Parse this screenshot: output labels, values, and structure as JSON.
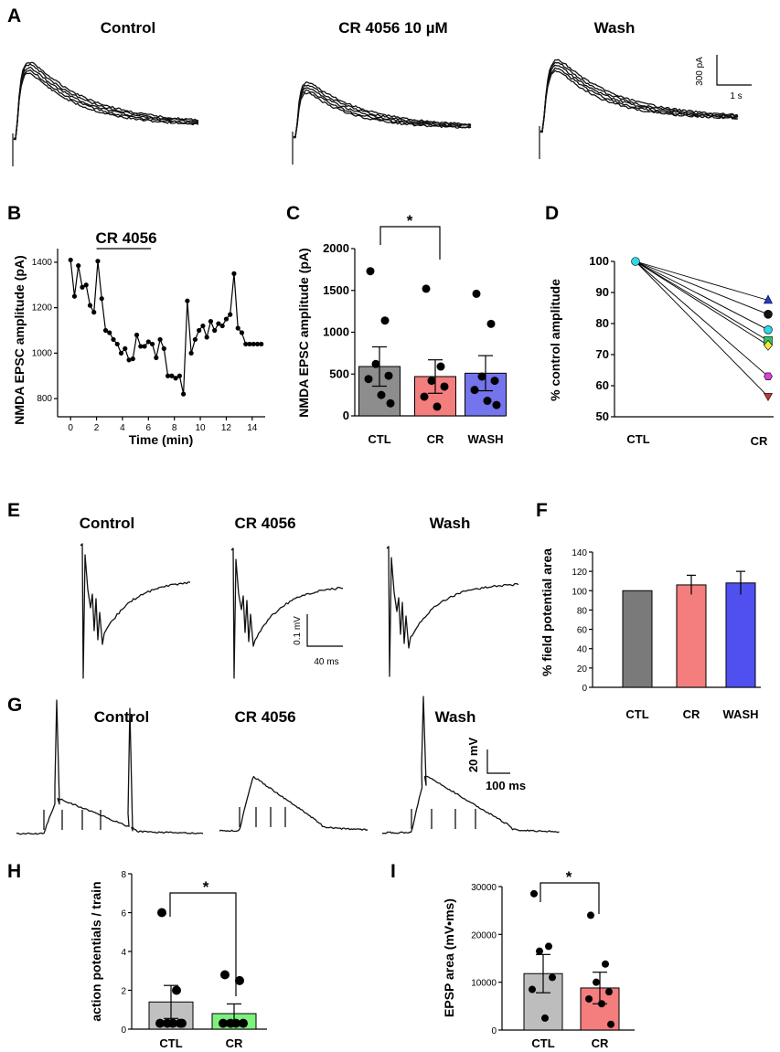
{
  "panel_letters": [
    "A",
    "B",
    "C",
    "D",
    "E",
    "F",
    "G",
    "H",
    "I"
  ],
  "chart_data": [
    {
      "panel": "A",
      "type": "line",
      "trace_titles": [
        "Control",
        "CR 4056 10 µM",
        "Wash"
      ],
      "scale_bar": {
        "y_label": "300 pA",
        "x_label": "1 s"
      }
    },
    {
      "panel": "B",
      "type": "line",
      "xlabel": "Time (min)",
      "ylabel": "NMDA EPSC amplitude (pA)",
      "xlim": [
        -1,
        15
      ],
      "ylim": [
        720,
        1460
      ],
      "xticks": [
        0,
        2,
        4,
        6,
        8,
        10,
        12,
        14
      ],
      "yticks": [
        800,
        1000,
        1200,
        1400
      ],
      "drug_bar": {
        "label": "CR 4056",
        "start": 2,
        "end": 6.2
      },
      "x": [
        0,
        0.3,
        0.6,
        0.9,
        1.2,
        1.5,
        1.8,
        2.1,
        2.4,
        2.7,
        3.0,
        3.3,
        3.6,
        3.9,
        4.2,
        4.5,
        4.8,
        5.1,
        5.4,
        5.7,
        6.0,
        6.3,
        6.6,
        6.9,
        7.2,
        7.5,
        7.8,
        8.1,
        8.4,
        8.7,
        9.0,
        9.3,
        9.6,
        9.9,
        10.2,
        10.5,
        10.8,
        11.1,
        11.4,
        11.7,
        12.0,
        12.3,
        12.6,
        12.9,
        13.2,
        13.5,
        13.8,
        14.1,
        14.4,
        14.7
      ],
      "y": [
        1410,
        1250,
        1385,
        1290,
        1300,
        1210,
        1180,
        1405,
        1240,
        1100,
        1090,
        1060,
        1040,
        1000,
        1020,
        970,
        975,
        1080,
        1030,
        1030,
        1050,
        1040,
        980,
        1060,
        1020,
        900,
        900,
        890,
        900,
        820,
        1230,
        1000,
        1060,
        1100,
        1120,
        1070,
        1140,
        1100,
        1130,
        1120,
        1150,
        1170,
        1350,
        1110,
        1090,
        1040,
        1040,
        1040,
        1040,
        1040
      ]
    },
    {
      "panel": "C",
      "type": "bar",
      "categories": [
        "CTL",
        "CR",
        "WASH"
      ],
      "values": [
        590,
        470,
        510
      ],
      "errors": [
        235,
        200,
        210
      ],
      "colors": [
        "#8d8d8d",
        "#f47d7d",
        "#7474ec"
      ],
      "points": [
        [
          1730,
          1140,
          620,
          480,
          440,
          250,
          150
        ],
        [
          1520,
          590,
          420,
          350,
          230,
          110
        ],
        [
          1460,
          1100,
          470,
          420,
          310,
          180,
          130
        ]
      ],
      "ylabel": "NMDA EPSC amplitude (pA)",
      "ylim": [
        0,
        2000
      ],
      "yticks": [
        0,
        500,
        1000,
        1500,
        2000
      ],
      "significance": {
        "between": [
          "CTL",
          "CR"
        ],
        "label": "*"
      }
    },
    {
      "panel": "D",
      "type": "line",
      "categories": [
        "CTL",
        "CR"
      ],
      "ylabel": "% control amplitude",
      "ylim": [
        50,
        100
      ],
      "yticks": [
        50,
        60,
        70,
        80,
        90,
        100
      ],
      "series": [
        {
          "start": 100,
          "end": 87.5,
          "marker": "triangle",
          "color": "#1f3bd0"
        },
        {
          "start": 100,
          "end": 83,
          "marker": "circle",
          "color": "#111111"
        },
        {
          "start": 100,
          "end": 78,
          "marker": "circle",
          "color": "#2fd7e3"
        },
        {
          "start": 100,
          "end": 74.5,
          "marker": "square",
          "color": "#2fc26b"
        },
        {
          "start": 100,
          "end": 73,
          "marker": "diamond",
          "color": "#f0ea3a"
        },
        {
          "start": 100,
          "end": 63,
          "marker": "hexagon",
          "color": "#de3fde"
        },
        {
          "start": 100,
          "end": 56.5,
          "marker": "triangle-down",
          "color": "#c0392b"
        }
      ]
    },
    {
      "panel": "E",
      "type": "line",
      "trace_titles": [
        "Control",
        "CR 4056",
        "Wash"
      ],
      "scale_bar": {
        "y_label": "0.1 mV",
        "x_label": "40 ms"
      }
    },
    {
      "panel": "F",
      "type": "bar",
      "categories": [
        "CTL",
        "CR",
        "WASH"
      ],
      "values": [
        100,
        106,
        108
      ],
      "errors": [
        0,
        10,
        12
      ],
      "colors": [
        "#7a7a7a",
        "#f47d7d",
        "#5050f0"
      ],
      "ylabel": "% field potential area",
      "ylim": [
        0,
        140
      ],
      "yticks": [
        0,
        20,
        40,
        60,
        80,
        100,
        120,
        140
      ]
    },
    {
      "panel": "G",
      "type": "line",
      "trace_titles": [
        "Control",
        "CR 4056",
        "Wash"
      ],
      "scale_bar": {
        "y_label": "20 mV",
        "x_label": "100 ms"
      }
    },
    {
      "panel": "H",
      "type": "bar",
      "categories": [
        "CTL",
        "CR"
      ],
      "values": [
        1.4,
        0.8
      ],
      "errors": [
        0.85,
        0.5
      ],
      "colors": [
        "#c0c0c0",
        "#7ef07e"
      ],
      "points": [
        [
          6,
          2,
          0.3,
          0.3,
          0.3,
          0.3,
          0.3
        ],
        [
          2.8,
          2.5,
          0.3,
          0.3,
          0.3,
          0.3
        ]
      ],
      "ylabel": "action potentials / train",
      "ylim": [
        0,
        8
      ],
      "yticks": [
        0,
        2,
        4,
        6,
        8
      ],
      "significance": {
        "between": [
          "CTL",
          "CR"
        ],
        "label": "*"
      }
    },
    {
      "panel": "I",
      "type": "bar",
      "categories": [
        "CTL",
        "CR"
      ],
      "values": [
        11800,
        8800
      ],
      "errors": [
        4000,
        3300
      ],
      "colors": [
        "#bdbdbd",
        "#f47d7d"
      ],
      "points": [
        [
          28500,
          17500,
          16500,
          11000,
          8500,
          2500
        ],
        [
          24000,
          13800,
          10000,
          8000,
          6500,
          5500,
          1200
        ]
      ],
      "ylabel": "EPSP area (mV•ms)",
      "ylim": [
        0,
        30000
      ],
      "yticks": [
        0,
        10000,
        20000,
        30000
      ],
      "significance": {
        "between": [
          "CTL",
          "CR"
        ],
        "label": "*"
      }
    }
  ]
}
